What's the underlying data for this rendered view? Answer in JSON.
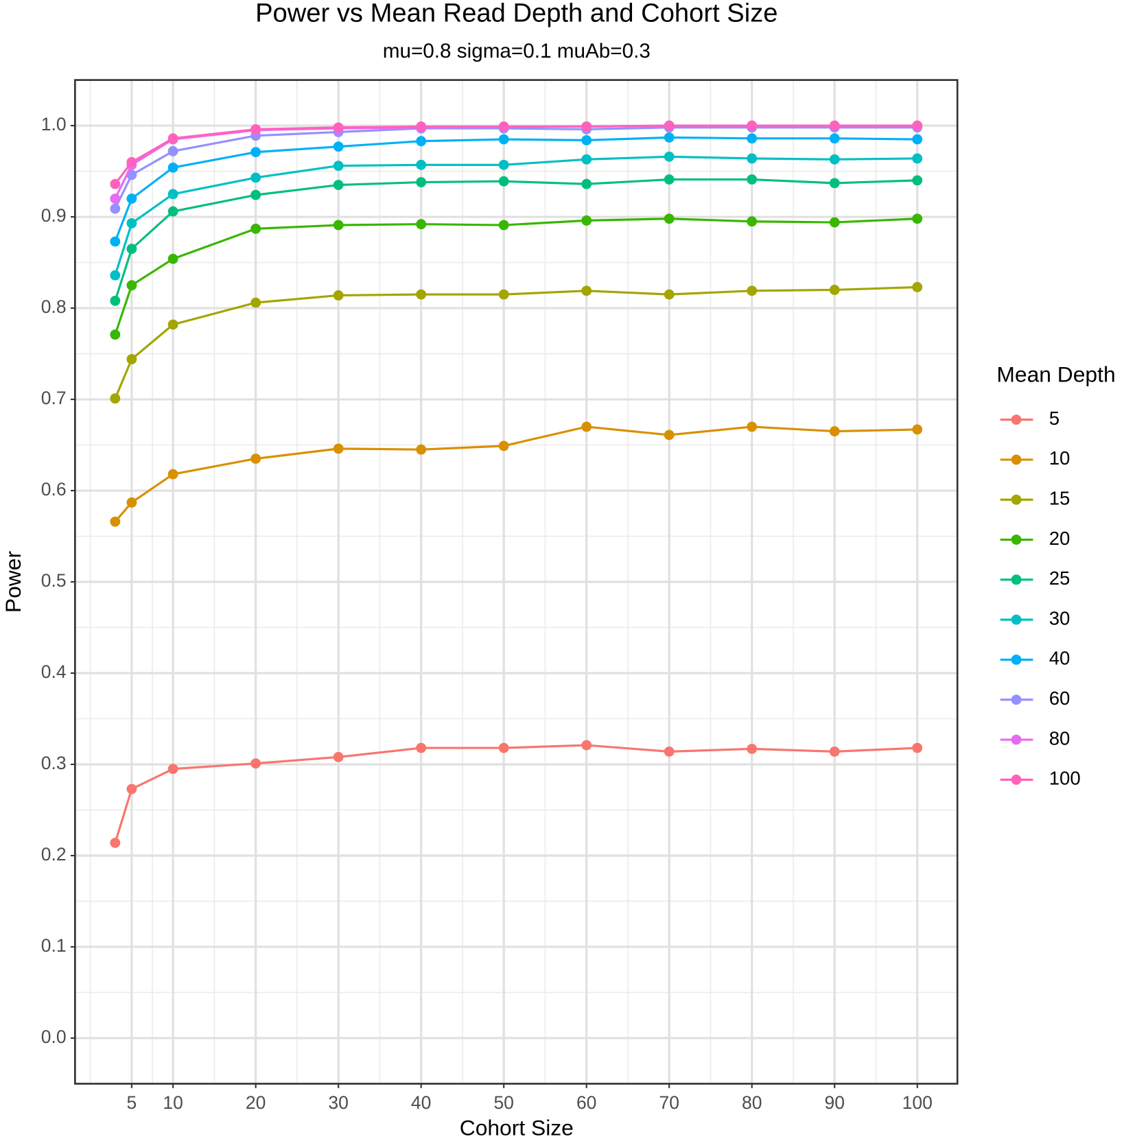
{
  "chart_data": {
    "type": "line",
    "title": "Power vs Mean Read Depth and Cohort Size",
    "subtitle": "mu=0.8 sigma=0.1 muAb=0.3",
    "x_label": "Cohort Size",
    "y_label": "Power",
    "legend_title": "Mean Depth",
    "legend_position": "right",
    "grid": true,
    "x": [
      3,
      5,
      10,
      20,
      30,
      40,
      50,
      60,
      70,
      80,
      90,
      100
    ],
    "xlim": [
      -1.85,
      104.85
    ],
    "xticks": [
      5,
      10,
      20,
      30,
      40,
      50,
      60,
      70,
      80,
      90,
      100
    ],
    "xminor_ticks": [
      0,
      7.5,
      15,
      25,
      35,
      45,
      55,
      65,
      75,
      85,
      95
    ],
    "ylim": [
      -0.05,
      1.05
    ],
    "yticks": [
      {
        "value": 0,
        "label": "0.0"
      },
      0.1,
      0.2,
      0.3,
      0.4,
      0.5,
      0.6,
      0.7,
      0.8,
      0.9,
      {
        "value": 1,
        "label": "1.0"
      }
    ],
    "yminor_ticks": [
      0.05,
      0.15,
      0.25,
      0.35,
      0.45,
      0.55,
      0.65,
      0.75,
      0.85,
      0.95
    ],
    "series": [
      {
        "name": "5",
        "color": "#F8766D",
        "values": [
          0.214,
          0.273,
          0.295,
          0.301,
          0.308,
          0.318,
          0.318,
          0.321,
          0.314,
          0.317,
          0.314,
          0.318
        ]
      },
      {
        "name": "10",
        "color": "#D89000",
        "values": [
          0.566,
          0.587,
          0.618,
          0.635,
          0.646,
          0.645,
          0.649,
          0.67,
          0.661,
          0.67,
          0.665,
          0.667
        ]
      },
      {
        "name": "15",
        "color": "#A3A500",
        "values": [
          0.701,
          0.744,
          0.782,
          0.806,
          0.814,
          0.815,
          0.815,
          0.819,
          0.815,
          0.819,
          0.82,
          0.823
        ]
      },
      {
        "name": "20",
        "color": "#39B600",
        "values": [
          0.771,
          0.825,
          0.854,
          0.887,
          0.891,
          0.892,
          0.891,
          0.896,
          0.898,
          0.895,
          0.894,
          0.898
        ]
      },
      {
        "name": "25",
        "color": "#00BF7D",
        "values": [
          0.808,
          0.865,
          0.906,
          0.924,
          0.935,
          0.938,
          0.939,
          0.936,
          0.941,
          0.941,
          0.937,
          0.94
        ]
      },
      {
        "name": "30",
        "color": "#00BFC4",
        "values": [
          0.836,
          0.893,
          0.925,
          0.943,
          0.956,
          0.957,
          0.957,
          0.963,
          0.966,
          0.964,
          0.963,
          0.964
        ]
      },
      {
        "name": "40",
        "color": "#00B0F6",
        "values": [
          0.873,
          0.92,
          0.954,
          0.971,
          0.977,
          0.983,
          0.985,
          0.984,
          0.987,
          0.986,
          0.986,
          0.985
        ]
      },
      {
        "name": "60",
        "color": "#9590FF",
        "values": [
          0.909,
          0.946,
          0.972,
          0.989,
          0.993,
          0.997,
          0.997,
          0.996,
          0.998,
          0.998,
          0.998,
          0.998
        ]
      },
      {
        "name": "80",
        "color": "#E76BF3",
        "values": [
          0.92,
          0.957,
          0.985,
          0.995,
          0.997,
          0.998,
          0.999,
          0.999,
          1.0,
          1.0,
          1.0,
          1.0
        ]
      },
      {
        "name": "100",
        "color": "#FF62BC",
        "values": [
          0.936,
          0.96,
          0.986,
          0.996,
          0.998,
          0.999,
          0.999,
          0.999,
          1.0,
          1.0,
          1.0,
          1.0
        ]
      }
    ]
  }
}
